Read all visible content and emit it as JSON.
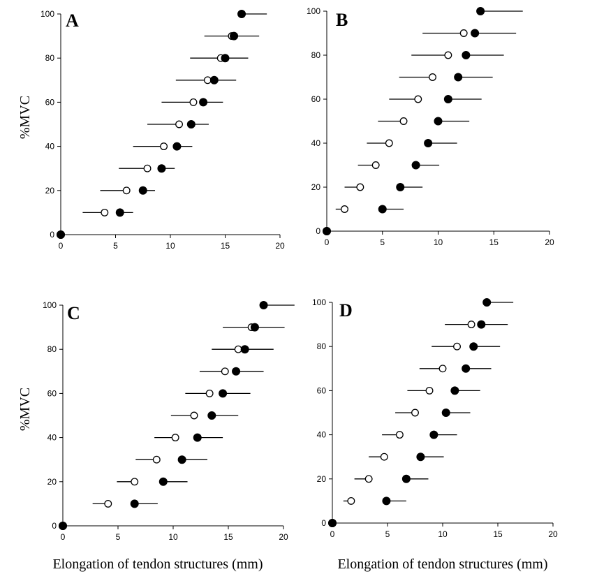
{
  "figure": {
    "ylabel": "%MVC",
    "xlabel": "Elongation of tendon structures (mm)"
  },
  "chart_data": [
    {
      "panel": "A",
      "type": "scatter",
      "xlabel": "",
      "ylabel": "%MVC",
      "xlim": [
        0,
        20
      ],
      "ylim": [
        0,
        100
      ],
      "xticks": [
        0,
        5,
        10,
        15,
        20
      ],
      "yticks": [
        0,
        20,
        40,
        60,
        80,
        100
      ],
      "series": [
        {
          "marker": "open",
          "y": [
            0,
            10,
            20,
            30,
            40,
            50,
            60,
            70,
            80,
            90
          ],
          "x": [
            0,
            4.0,
            6.0,
            7.9,
            9.4,
            10.8,
            12.1,
            13.4,
            14.6,
            15.6
          ],
          "xerr_low": [
            0,
            2.0,
            2.4,
            2.6,
            2.8,
            2.9,
            2.9,
            2.9,
            2.8,
            2.5
          ]
        },
        {
          "marker": "filled",
          "y": [
            0,
            10,
            20,
            30,
            40,
            50,
            60,
            70,
            80,
            90,
            100
          ],
          "x": [
            0,
            5.4,
            7.5,
            9.2,
            10.6,
            11.9,
            13.0,
            14.0,
            15.0,
            15.8,
            16.5
          ],
          "xerr_high": [
            0,
            1.2,
            1.1,
            1.2,
            1.4,
            1.6,
            1.8,
            2.0,
            2.1,
            2.3,
            2.3
          ]
        }
      ]
    },
    {
      "panel": "B",
      "type": "scatter",
      "xlabel": "",
      "ylabel": "",
      "xlim": [
        0,
        20
      ],
      "ylim": [
        0,
        100
      ],
      "xticks": [
        0,
        5,
        10,
        15,
        20
      ],
      "yticks": [
        0,
        20,
        40,
        60,
        80,
        100
      ],
      "series": [
        {
          "marker": "open",
          "y": [
            0,
            10,
            20,
            30,
            40,
            50,
            60,
            70,
            80,
            90
          ],
          "x": [
            0,
            1.6,
            3.0,
            4.4,
            5.6,
            6.9,
            8.2,
            9.5,
            10.9,
            12.3
          ],
          "xerr_low": [
            0,
            0.8,
            1.4,
            1.6,
            2.0,
            2.3,
            2.6,
            3.0,
            3.3,
            3.7
          ]
        },
        {
          "marker": "filled",
          "y": [
            0,
            10,
            20,
            30,
            40,
            50,
            60,
            70,
            80,
            90,
            100
          ],
          "x": [
            0,
            5.0,
            6.6,
            8.0,
            9.1,
            10.0,
            10.9,
            11.8,
            12.5,
            13.3,
            13.8
          ],
          "xerr_high": [
            0,
            1.9,
            2.0,
            2.1,
            2.6,
            2.8,
            3.0,
            3.1,
            3.4,
            3.7,
            3.8
          ]
        }
      ]
    },
    {
      "panel": "C",
      "type": "scatter",
      "xlabel": "Elongation of tendon structures (mm)",
      "ylabel": "%MVC",
      "xlim": [
        0,
        20
      ],
      "ylim": [
        0,
        100
      ],
      "xticks": [
        0,
        5,
        10,
        15,
        20
      ],
      "yticks": [
        0,
        20,
        40,
        60,
        80,
        100
      ],
      "series": [
        {
          "marker": "open",
          "y": [
            0,
            10,
            20,
            30,
            40,
            50,
            60,
            70,
            80,
            90
          ],
          "x": [
            0,
            4.1,
            6.5,
            8.5,
            10.2,
            11.9,
            13.3,
            14.7,
            15.9,
            17.1
          ],
          "xerr_low": [
            0,
            1.4,
            1.6,
            1.9,
            1.9,
            2.1,
            2.2,
            2.3,
            2.4,
            2.6
          ]
        },
        {
          "marker": "filled",
          "y": [
            0,
            10,
            20,
            30,
            40,
            50,
            60,
            70,
            80,
            90,
            100
          ],
          "x": [
            0,
            6.5,
            9.1,
            10.8,
            12.2,
            13.5,
            14.5,
            15.7,
            16.5,
            17.4,
            18.2
          ],
          "xerr_high": [
            0,
            2.1,
            2.2,
            2.3,
            2.3,
            2.4,
            2.5,
            2.5,
            2.6,
            2.7,
            2.8
          ]
        }
      ]
    },
    {
      "panel": "D",
      "type": "scatter",
      "xlabel": "Elongation of tendon structures (mm)",
      "ylabel": "",
      "xlim": [
        0,
        20
      ],
      "ylim": [
        0,
        100
      ],
      "xticks": [
        0,
        5,
        10,
        15,
        20
      ],
      "yticks": [
        0,
        20,
        40,
        60,
        80,
        100
      ],
      "series": [
        {
          "marker": "open",
          "y": [
            0,
            10,
            20,
            30,
            40,
            50,
            60,
            70,
            80,
            90
          ],
          "x": [
            0,
            1.7,
            3.3,
            4.7,
            6.1,
            7.5,
            8.8,
            10.0,
            11.3,
            12.6
          ],
          "xerr_low": [
            0,
            0.7,
            1.3,
            1.4,
            1.6,
            1.8,
            2.0,
            2.1,
            2.3,
            2.4
          ]
        },
        {
          "marker": "filled",
          "y": [
            0,
            10,
            20,
            30,
            40,
            50,
            60,
            70,
            80,
            90,
            100
          ],
          "x": [
            0,
            4.9,
            6.7,
            8.0,
            9.2,
            10.3,
            11.1,
            12.1,
            12.8,
            13.5,
            14.0
          ],
          "xerr_high": [
            0,
            1.8,
            2.0,
            2.1,
            2.1,
            2.2,
            2.3,
            2.3,
            2.4,
            2.4,
            2.4
          ]
        }
      ]
    }
  ]
}
